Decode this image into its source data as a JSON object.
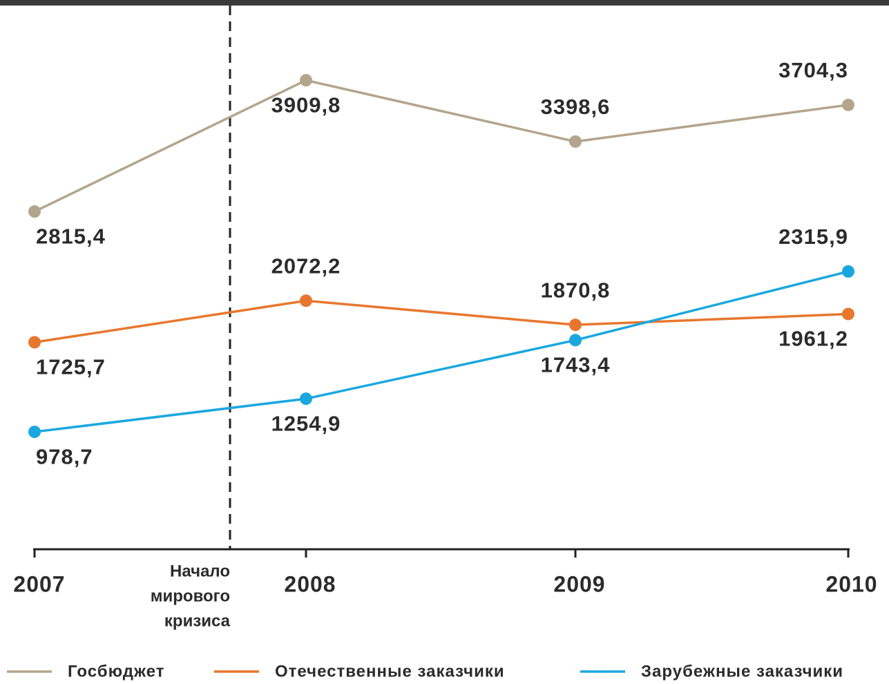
{
  "chart_data": {
    "type": "line",
    "categories": [
      "2007",
      "2008",
      "2009",
      "2010"
    ],
    "series": [
      {
        "name": "Госбюджет",
        "color": "#b3a58c",
        "values": [
          2815.4,
          3909.8,
          3398.6,
          3704.3
        ],
        "value_labels": [
          "2815,4",
          "3909,8",
          "3398,6",
          "3704,3"
        ]
      },
      {
        "name": "Отечественные заказчики",
        "color": "#e8772e",
        "values": [
          1725.7,
          2072.2,
          1870.8,
          1961.2
        ],
        "value_labels": [
          "1725,7",
          "2072,2",
          "1870,8",
          "1961,2"
        ]
      },
      {
        "name": "Зарубежные заказчики",
        "color": "#1aa7e0",
        "values": [
          978.7,
          1254.9,
          1743.4,
          2315.9
        ],
        "value_labels": [
          "978,7",
          "1254,9",
          "1743,4",
          "2315,9"
        ]
      }
    ],
    "ylim": [
      0,
      4550
    ],
    "annotation": {
      "lines": [
        "Начало",
        "мирового",
        "кризиса"
      ]
    }
  }
}
